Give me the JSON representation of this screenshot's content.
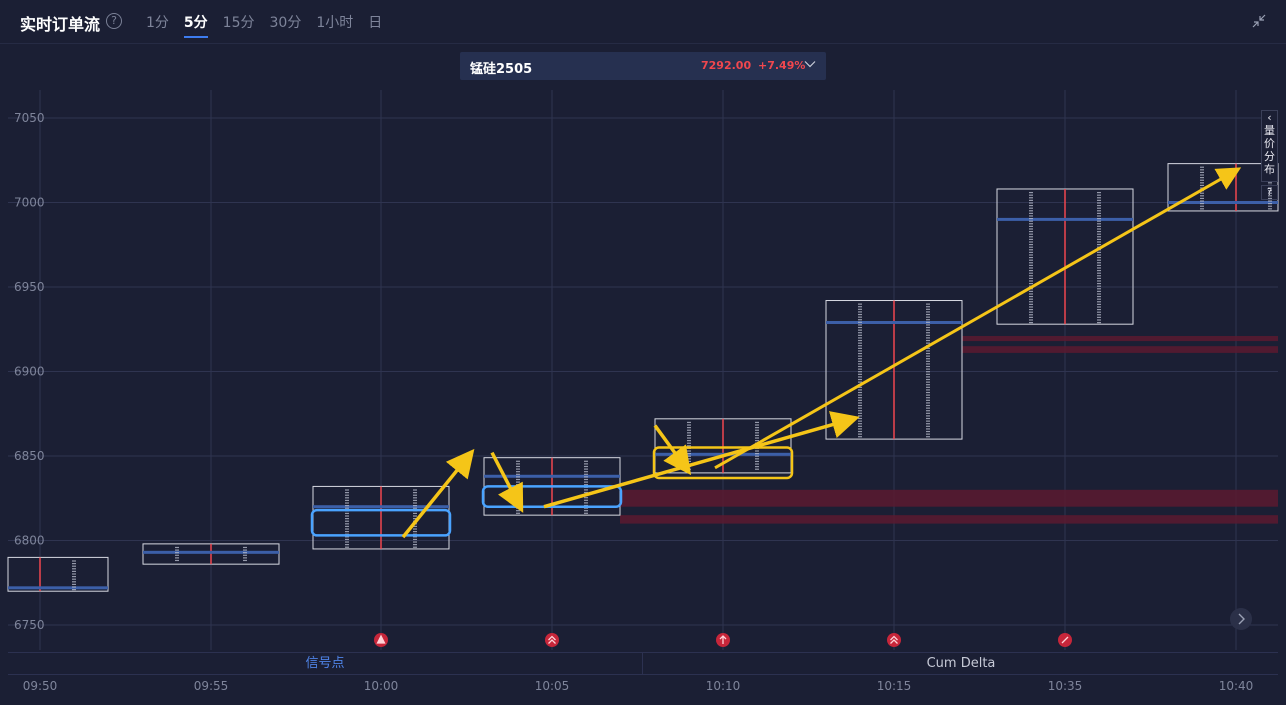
{
  "header": {
    "title": "实时订单流",
    "tabs": [
      {
        "label": "1分",
        "active": false
      },
      {
        "label": "5分",
        "active": true
      },
      {
        "label": "15分",
        "active": false
      },
      {
        "label": "30分",
        "active": false
      },
      {
        "label": "1小时",
        "active": false
      },
      {
        "label": "日",
        "active": false
      }
    ]
  },
  "symbol": {
    "name": "锰硅2505",
    "price": "7292.00",
    "change": "+7.49%"
  },
  "side_panel": {
    "arrow": "‹",
    "label_chars": [
      "量",
      "价",
      "分",
      "布"
    ],
    "help": "?"
  },
  "bottom_tabs": {
    "left": "信号点",
    "right": "Cum Delta"
  },
  "colors": {
    "background": "#1b1f34",
    "grid": "#2f3450",
    "candle_box": "#d7d9e2",
    "delta_line": "#f0474e",
    "poc_band": "#3c5fa8",
    "volume_zone": "#5b1a30",
    "arrow": "#f5c518",
    "highlight_blue": "#4aa3ff",
    "highlight_yellow": "#f5c518",
    "signal_marker": "#c7263a",
    "accent": "#3d7cf0"
  },
  "chart_data": {
    "type": "candlestick-footprint",
    "y_ticks": [
      7050,
      7000,
      6950,
      6900,
      6850,
      6800,
      6750
    ],
    "ylim": [
      6740,
      7060
    ],
    "x_labels": [
      "09:50",
      "09:55",
      "10:00",
      "10:05",
      "10:10",
      "10:15",
      "10:35",
      "10:40"
    ],
    "bars": [
      {
        "time": "09:50",
        "low": 6770,
        "high": 6790,
        "poc": 6772
      },
      {
        "time": "09:55",
        "low": 6786,
        "high": 6798,
        "poc": 6793
      },
      {
        "time": "10:00",
        "low": 6795,
        "high": 6832,
        "poc": 6820
      },
      {
        "time": "10:05",
        "low": 6815,
        "high": 6849,
        "poc": 6838
      },
      {
        "time": "10:10",
        "low": 6840,
        "high": 6872,
        "poc": 6851
      },
      {
        "time": "10:15",
        "low": 6860,
        "high": 6942,
        "poc": 6929
      },
      {
        "time": "10:35",
        "low": 6928,
        "high": 7008,
        "poc": 6990
      },
      {
        "time": "10:40",
        "low": 6995,
        "high": 7023,
        "poc": 7000
      }
    ],
    "volume_zones": [
      {
        "from_time": "10:05",
        "price_low": 6820,
        "price_high": 6830
      },
      {
        "from_time": "10:05",
        "price_low": 6810,
        "price_high": 6815
      },
      {
        "from_time": "10:15",
        "price_low": 6918,
        "price_high": 6921
      },
      {
        "from_time": "10:15",
        "price_low": 6911,
        "price_high": 6915
      }
    ],
    "highlights": [
      {
        "time": "10:00",
        "price_low": 6803,
        "price_high": 6818,
        "color": "blue"
      },
      {
        "time": "10:05",
        "price_low": 6820,
        "price_high": 6832,
        "color": "blue"
      },
      {
        "time": "10:10",
        "price_low": 6837,
        "price_high": 6855,
        "color": "yellow"
      }
    ],
    "arrows": [
      {
        "from": [
          "10:00",
          6802
        ],
        "to": [
          "10:05",
          6851
        ]
      },
      {
        "from": [
          "10:05",
          6852
        ],
        "to": [
          "10:05",
          6820
        ]
      },
      {
        "from": [
          "10:05",
          6820
        ],
        "to": [
          "10:10",
          6872
        ]
      },
      {
        "from": [
          "10:10",
          6868
        ],
        "to": [
          "10:10",
          6842
        ]
      },
      {
        "from": [
          "10:10",
          6843
        ],
        "to": [
          "10:40",
          7019
        ]
      }
    ],
    "signals": [
      {
        "time": "10:00",
        "icon": "triangle-up"
      },
      {
        "time": "10:05",
        "icon": "double-chevron-up"
      },
      {
        "time": "10:10",
        "icon": "arrow-up"
      },
      {
        "time": "10:15",
        "icon": "double-chevron-up"
      },
      {
        "time": "10:35",
        "icon": "slash"
      }
    ]
  }
}
